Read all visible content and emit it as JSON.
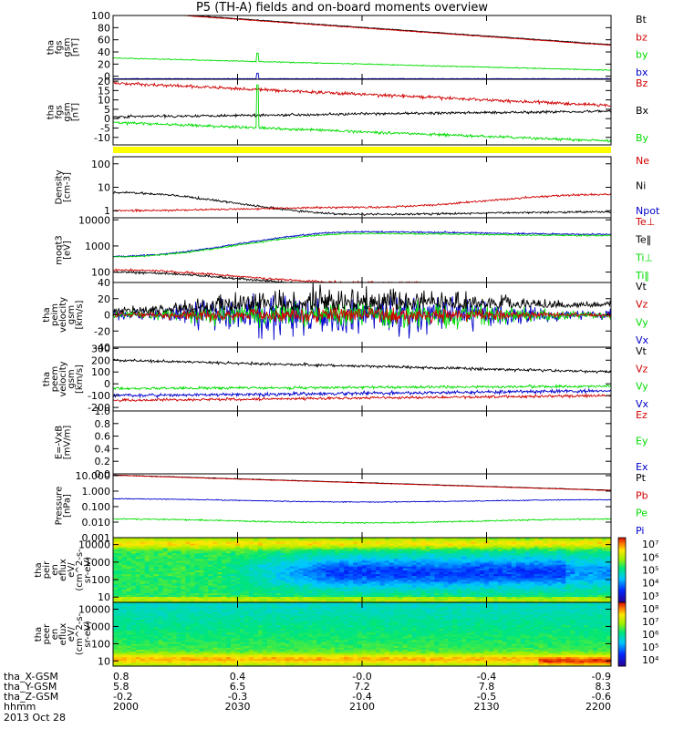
{
  "title": "P5 (TH-A) fields and on-board moments overview",
  "colors": {
    "black": "#000000",
    "red": "#d00000",
    "green": "#00dd00",
    "blue": "#0000cc",
    "yellow": "#ffff00"
  },
  "chart_data": [
    {
      "id": "fgs-gsm",
      "type": "line",
      "ylabel": [
        "tha",
        "fgs",
        "gsm",
        "[nT]"
      ],
      "ylim": [
        -5,
        100
      ],
      "yticks": [
        "100",
        "80",
        "60",
        "40",
        "20",
        "0"
      ],
      "ytick_values": [
        100,
        80,
        60,
        40,
        20,
        0
      ],
      "legend": [
        {
          "label": "Bt",
          "color": "#000000"
        },
        {
          "label": "bz",
          "color": "#d00000"
        },
        {
          "label": "by",
          "color": "#00dd00"
        },
        {
          "label": "bx",
          "color": "#0000cc"
        }
      ],
      "series": [
        {
          "color": "#000000",
          "start": 109,
          "end": 52,
          "noise": 0.4
        },
        {
          "color": "#d00000",
          "start": 108,
          "end": 51,
          "noise": 0.4
        },
        {
          "color": "#00dd00",
          "start": 30,
          "end": 10,
          "noise": 0.6,
          "spike": {
            "t": 0.29,
            "v": 38
          }
        },
        {
          "color": "#0000cc",
          "start": -4,
          "end": -4,
          "noise": 0.3,
          "spike": {
            "t": 0.29,
            "v": 5
          }
        }
      ]
    },
    {
      "id": "fgs-gsm-b",
      "type": "line",
      "ylabel": [
        "tha",
        "fgs",
        "gsm",
        "[nT]"
      ],
      "ylim": [
        -14,
        21
      ],
      "yticks": [
        "20",
        "15",
        "10",
        "5",
        "0",
        "-5",
        "-10"
      ],
      "ytick_values": [
        20,
        15,
        10,
        5,
        0,
        -5,
        -10
      ],
      "legend": [
        {
          "label": "Bz",
          "color": "#d00000"
        },
        {
          "label": "Bx",
          "color": "#000000"
        },
        {
          "label": "By",
          "color": "#00dd00"
        }
      ],
      "series": [
        {
          "color": "#d00000",
          "start": 19,
          "end": 7,
          "noise": 0.6
        },
        {
          "color": "#000000",
          "start": 1,
          "end": 4,
          "noise": 0.5
        },
        {
          "color": "#00dd00",
          "start": -2,
          "end": -12,
          "noise": 0.5,
          "spike": {
            "t": 0.29,
            "v": 18
          }
        }
      ]
    },
    {
      "id": "density",
      "type": "line",
      "log": true,
      "ylabel": [
        "Density",
        "[cm-3]"
      ],
      "ylim": [
        0.5,
        200
      ],
      "yticks": [
        "100",
        "10",
        "1"
      ],
      "ytick_values": [
        100,
        10,
        1
      ],
      "legend": [
        {
          "label": "Ne",
          "color": "#d00000"
        },
        {
          "label": "Ni",
          "color": "#000000"
        },
        {
          "label": "Npot",
          "color": "#0000cc"
        }
      ],
      "series": [
        {
          "color": "#000000",
          "start": 6,
          "mid": 0.7,
          "end": 0.9,
          "noise": 0.03
        },
        {
          "color": "#d00000",
          "start": 1.0,
          "mid": 1.4,
          "end": 5,
          "noise": 0.03
        }
      ]
    },
    {
      "id": "temperature",
      "type": "line",
      "log": true,
      "ylabel": [
        "moqt3",
        "[eV]"
      ],
      "ylim": [
        40,
        12000
      ],
      "yticks": [
        "10000",
        "1000",
        "100"
      ],
      "ytick_values": [
        10000,
        1000,
        100
      ],
      "legend": [
        {
          "label": "Te⊥",
          "color": "#d00000"
        },
        {
          "label": "Te‖",
          "color": "#000000"
        },
        {
          "label": "Ti⊥",
          "color": "#00dd00"
        },
        {
          "label": "Ti‖",
          "color": "#00dd00"
        }
      ],
      "series": [
        {
          "color": "#0000cc",
          "start": 400,
          "mid": 3500,
          "end": 2800,
          "noise": 0.02
        },
        {
          "color": "#00dd00",
          "start": 380,
          "mid": 3000,
          "end": 2500,
          "noise": 0.02
        },
        {
          "color": "#d00000",
          "start": 120,
          "mid": 40,
          "end": 30,
          "noise": 0.03
        },
        {
          "color": "#000000",
          "start": 100,
          "mid": 32,
          "end": 25,
          "noise": 0.03
        }
      ]
    },
    {
      "id": "peim-velocity",
      "type": "line",
      "ylabel": [
        "tha",
        "peim",
        "velocity",
        "gsm",
        "[km/s]"
      ],
      "ylim": [
        -40,
        40
      ],
      "yticks": [
        "40",
        "20",
        "0",
        "-20",
        "-40"
      ],
      "ytick_values": [
        40,
        20,
        0,
        -20,
        -40
      ],
      "legend": [
        {
          "label": "Vt",
          "color": "#000000"
        },
        {
          "label": "Vz",
          "color": "#d00000"
        },
        {
          "label": "Vy",
          "color": "#00dd00"
        },
        {
          "label": "Vx",
          "color": "#0000cc"
        }
      ],
      "series": [
        {
          "color": "#0000cc",
          "start": 0,
          "end": 0,
          "noise": 4,
          "grow": 3.5
        },
        {
          "color": "#00dd00",
          "start": 0,
          "end": 0,
          "noise": 3,
          "grow": 3
        },
        {
          "color": "#d00000",
          "start": 0,
          "end": 0,
          "noise": 2,
          "grow": 2.5
        },
        {
          "color": "#000000",
          "start": 2,
          "end": 10,
          "noise": 3,
          "grow": 3,
          "positive": true
        }
      ]
    },
    {
      "id": "peem-velocity",
      "type": "line",
      "ylabel": [
        "tha",
        "peem",
        "velocity",
        "gsm",
        "[km/s]"
      ],
      "ylim": [
        -230,
        310
      ],
      "yticks": [
        "300",
        "200",
        "100",
        "0",
        "-100",
        "-200"
      ],
      "ytick_values": [
        300,
        200,
        100,
        0,
        -100,
        -200
      ],
      "legend": [
        {
          "label": "Vt",
          "color": "#000000"
        },
        {
          "label": "Vz",
          "color": "#d00000"
        },
        {
          "label": "Vy",
          "color": "#00dd00"
        },
        {
          "label": "Vx",
          "color": "#0000cc"
        }
      ],
      "series": [
        {
          "color": "#000000",
          "start": 200,
          "end": 100,
          "noise": 8
        },
        {
          "color": "#00dd00",
          "start": -40,
          "end": -20,
          "noise": 8
        },
        {
          "color": "#0000cc",
          "start": -100,
          "end": -60,
          "noise": 10
        },
        {
          "color": "#d00000",
          "start": -140,
          "end": -100,
          "noise": 8
        }
      ]
    },
    {
      "id": "efield",
      "type": "line",
      "ylabel": [
        "E=-VxB",
        "[mV/m]"
      ],
      "ylim": [
        0,
        1
      ],
      "yticks": [
        "1.0",
        "0.8",
        "0.6",
        "0.4",
        "0.2",
        "0.0"
      ],
      "ytick_values": [
        1.0,
        0.8,
        0.6,
        0.4,
        0.2,
        0.0
      ],
      "legend": [
        {
          "label": "Ez",
          "color": "#d00000"
        },
        {
          "label": "Ey",
          "color": "#00dd00"
        },
        {
          "label": "Ex",
          "color": "#0000cc"
        }
      ],
      "series": []
    },
    {
      "id": "pressure",
      "type": "line",
      "log": true,
      "ylabel": [
        "Pressure",
        "[nPa]"
      ],
      "ylim": [
        0.001,
        13
      ],
      "yticks": [
        "10.000",
        "1.000",
        "0.100",
        "0.010",
        "0.001"
      ],
      "ytick_values": [
        10,
        1,
        0.1,
        0.01,
        0.001
      ],
      "legend": [
        {
          "label": "Pt",
          "color": "#000000"
        },
        {
          "label": "Pb",
          "color": "#d00000"
        },
        {
          "label": "Pe",
          "color": "#00dd00"
        },
        {
          "label": "Pi",
          "color": "#0000cc"
        }
      ],
      "series": [
        {
          "color": "#000000",
          "start": 11,
          "end": 1.15,
          "noise": 0.01
        },
        {
          "color": "#d00000",
          "start": 10.5,
          "end": 1.1,
          "noise": 0.01
        },
        {
          "color": "#0000cc",
          "start": 0.32,
          "mid": 0.2,
          "end": 0.28,
          "noise": 0.02
        },
        {
          "color": "#00dd00",
          "start": 0.016,
          "mid": 0.009,
          "end": 0.016,
          "noise": 0.03
        }
      ]
    },
    {
      "id": "peir-spectrogram",
      "type": "heatmap",
      "log": true,
      "ylabel": [
        "tha",
        "peir",
        "en",
        "eflux",
        "eV/",
        "(cm^2-s-",
        "sr-eV)"
      ],
      "ylim": [
        5,
        25000
      ],
      "yticks": [
        "10000",
        "1000",
        "100",
        "10"
      ],
      "ytick_values": [
        10000,
        1000,
        100,
        10
      ],
      "colorbar_ticks": [
        "10⁷",
        "10⁶",
        "10⁵",
        "10⁴",
        "10³"
      ],
      "colorbar_exponents": [
        7,
        6,
        5,
        4,
        3
      ],
      "colorbar_range": [
        2.5,
        7.5
      ]
    },
    {
      "id": "peer-spectrogram",
      "type": "heatmap",
      "log": true,
      "ylabel": [
        "tha",
        "peer",
        "en",
        "eflux",
        "eV/",
        "(cm^2-s-",
        "sr-eV)"
      ],
      "ylim": [
        5,
        25000
      ],
      "yticks": [
        "10000",
        "1000",
        "100",
        "10"
      ],
      "ytick_values": [
        10000,
        1000,
        100,
        10
      ],
      "colorbar_ticks": [
        "10⁸",
        "10⁷",
        "10⁶",
        "10⁵",
        "10⁴"
      ],
      "colorbar_exponents": [
        8,
        7,
        6,
        5,
        4
      ],
      "colorbar_range": [
        3.5,
        8.5
      ]
    }
  ],
  "x_axis": {
    "tick_fracs": [
      0,
      0.25,
      0.5,
      0.75,
      1
    ],
    "rows": [
      {
        "label": "tha_X-GSM",
        "values": [
          "0.8",
          "0.4",
          "-0.0",
          "-0.4",
          "-0.9"
        ]
      },
      {
        "label": "tha_Y-GSM",
        "values": [
          "5.8",
          "6.5",
          "7.2",
          "7.8",
          "8.3"
        ]
      },
      {
        "label": "tha_Z-GSM",
        "values": [
          "-0.2",
          "-0.3",
          "-0.4",
          "-0.5",
          "-0.6"
        ]
      },
      {
        "label": "hhmm",
        "values": [
          "2000",
          "2030",
          "2100",
          "2130",
          "2200"
        ]
      }
    ],
    "date": "2013 Oct 28"
  }
}
